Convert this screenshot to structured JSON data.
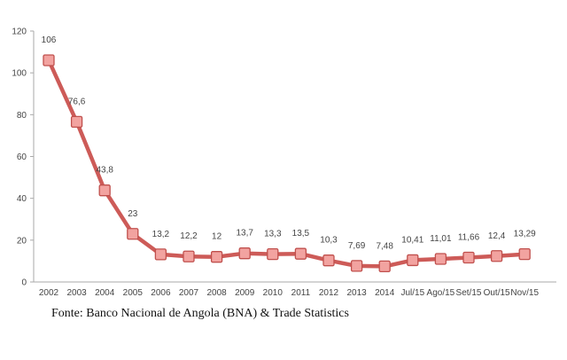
{
  "chart_data": {
    "type": "line",
    "categories": [
      "2002",
      "2003",
      "2004",
      "2005",
      "2006",
      "2007",
      "2008",
      "2009",
      "2010",
      "2011",
      "2012",
      "2013",
      "2014",
      "Jul/15",
      "Ago/15",
      "Set/15",
      "Out/15",
      "Nov/15"
    ],
    "values": [
      106,
      76.6,
      43.8,
      23,
      13.2,
      12.2,
      12,
      13.7,
      13.3,
      13.5,
      10.3,
      7.69,
      7.48,
      10.41,
      11.01,
      11.66,
      12.4,
      13.29
    ],
    "value_labels": [
      "106",
      "76,6",
      "43,8",
      "23",
      "13,2",
      "12,2",
      "12",
      "13,7",
      "13,3",
      "13,5",
      "10,3",
      "7,69",
      "7,48",
      "10,41",
      "11,01",
      "11,66",
      "12,4",
      "13,29"
    ],
    "y_ticks": [
      "0",
      "20",
      "40",
      "60",
      "80",
      "100",
      "120"
    ],
    "ylim": [
      0,
      120
    ],
    "grid": false,
    "legend": "none",
    "colors": {
      "line": "#cd5b58",
      "marker_fill": "#f2a3a0",
      "marker_edge": "#c0504d",
      "axis": "#aaaaaa"
    }
  },
  "source_note": "Fonte: Banco Nacional de Angola (BNA) & Trade Statistics"
}
